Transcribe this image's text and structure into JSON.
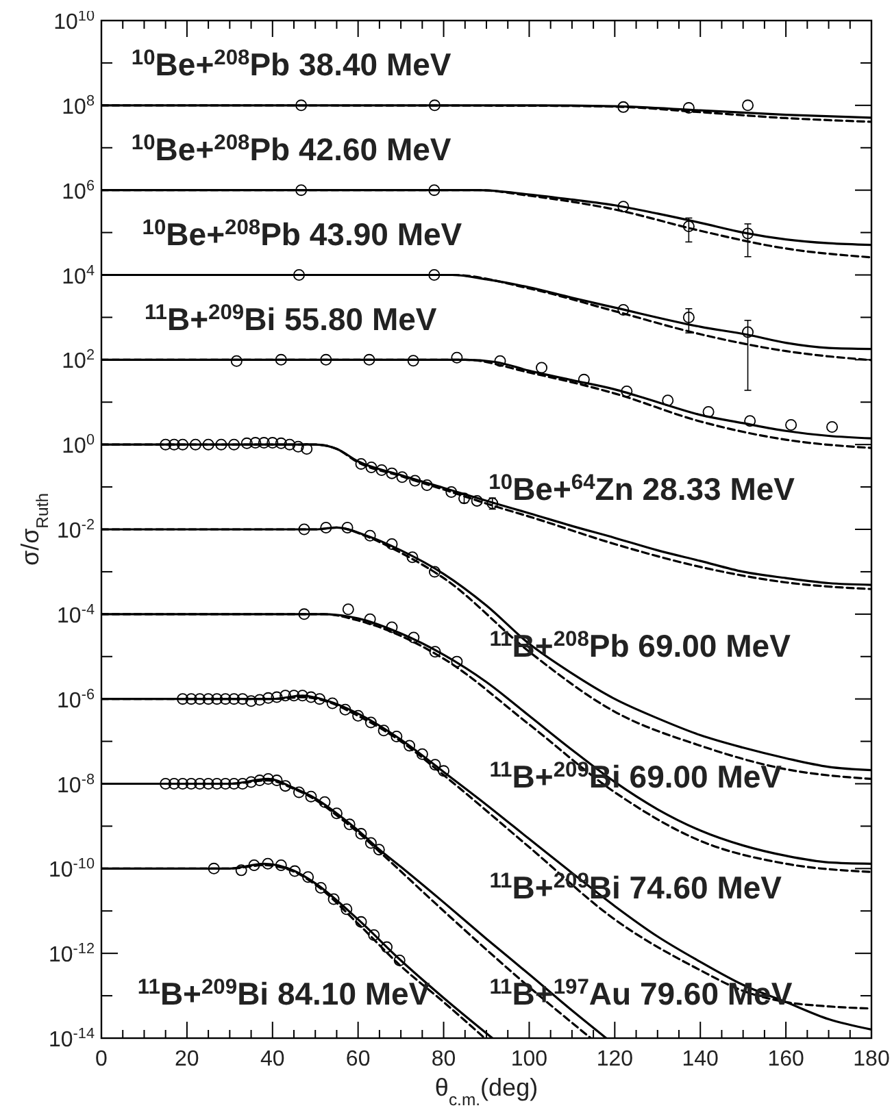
{
  "chart_data": {
    "type": "line",
    "log": true,
    "xlabel": "θ$_{c.m.}$(deg)",
    "ylabel": "σ/σ$_{Ruth}$",
    "xlim": [
      0,
      180
    ],
    "ylim": [
      1e-14,
      10000000000.0
    ],
    "xticks": [
      0,
      {
        "value": 5,
        "label": null
      },
      {
        "value": 10,
        "label": null
      },
      {
        "value": 15,
        "label": null
      },
      20,
      {
        "value": 25,
        "label": null
      },
      {
        "value": 30,
        "label": null
      },
      {
        "value": 35,
        "label": null
      },
      40,
      {
        "value": 45,
        "label": null
      },
      {
        "value": 50,
        "label": null
      },
      {
        "value": 55,
        "label": null
      },
      60,
      {
        "value": 65,
        "label": null
      },
      {
        "value": 70,
        "label": null
      },
      {
        "value": 75,
        "label": null
      },
      80,
      {
        "value": 85,
        "label": null
      },
      {
        "value": 90,
        "label": null
      },
      {
        "value": 95,
        "label": null
      },
      100,
      {
        "value": 105,
        "label": null
      },
      {
        "value": 110,
        "label": null
      },
      {
        "value": 115,
        "label": null
      },
      120,
      {
        "value": 125,
        "label": null
      },
      {
        "value": 130,
        "label": null
      },
      {
        "value": 135,
        "label": null
      },
      140,
      {
        "value": 145,
        "label": null
      },
      {
        "value": 150,
        "label": null
      },
      {
        "value": 155,
        "label": null
      },
      160,
      {
        "value": 165,
        "label": null
      },
      {
        "value": 170,
        "label": null
      },
      {
        "value": 175,
        "label": null
      },
      180
    ],
    "yticks": [
      {
        "value": 1e-14,
        "label": "10$^{-14}$"
      },
      {
        "value": 1e-13,
        "label": null
      },
      {
        "value": 1e-12,
        "label": "10$^{-12}$"
      },
      {
        "value": 1e-11,
        "label": null
      },
      {
        "value": 1e-10,
        "label": "10$^{-10}$"
      },
      {
        "value": 1e-09,
        "label": null
      },
      {
        "value": 1e-08,
        "label": "10$^{-8}$"
      },
      {
        "value": 1e-07,
        "label": null
      },
      {
        "value": 1e-06,
        "label": "10$^{-6}$"
      },
      {
        "value": 1e-05,
        "label": null
      },
      {
        "value": 0.0001,
        "label": "10$^{-4}$"
      },
      {
        "value": 0.001,
        "label": null
      },
      {
        "value": 0.01,
        "label": "10$^{-2}$"
      },
      {
        "value": 0.1,
        "label": null
      },
      {
        "value": 1,
        "label": "10$^{0}$"
      },
      {
        "value": 10,
        "label": null
      },
      {
        "value": 100,
        "label": "10$^{2}$"
      },
      {
        "value": 1000.0,
        "label": null
      },
      {
        "value": 10000.0,
        "label": "10$^{4}$"
      },
      {
        "value": 100000.0,
        "label": null
      },
      {
        "value": 1000000.0,
        "label": "10$^{6}$"
      },
      {
        "value": 10000000.0,
        "label": null
      },
      {
        "value": 100000000.0,
        "label": "10$^{8}$"
      },
      {
        "value": 1000000000.0,
        "label": null
      },
      {
        "value": 10000000000.0,
        "label": "10$^{10}$"
      }
    ],
    "annotations": [
      "$^{10}$Be+$^{208}$Pb 38.40 MeV",
      "$^{10}$Be+$^{208}$Pb 42.60 MeV",
      "$^{10}$Be+$^{208}$Pb 43.90 MeV",
      "$^{11}$B+$^{209}$Bi 55.80 MeV",
      "$^{10}$Be+$^{64}$Zn 28.33 MeV",
      "$^{11}$B+$^{208}$Pb 69.00 MeV",
      "$^{11}$B+$^{209}$Bi 69.00 MeV",
      "$^{11}$B+$^{209}$Bi 74.60 MeV",
      "$^{11}$B+$^{209}$Bi 84.10 MeV",
      "$^{11}$B+$^{197}$Au 79.60 MeV"
    ],
    "series": [
      {
        "type": "line",
        "line_style": "solid",
        "color": "#000000",
        "x": [
          0,
          100,
          120,
          140,
          160,
          180
        ],
        "values": [
          100000000.0,
          100000000.0,
          95000000.0,
          76000000.0,
          60000000.0,
          51000000.0
        ]
      },
      {
        "type": "line",
        "line_style": "dashed",
        "color": "#000000",
        "x": [
          0,
          100,
          120,
          140,
          160,
          180
        ],
        "values": [
          100000000.0,
          98000000.0,
          93000000.0,
          69000000.0,
          50000000.0,
          41000000.0
        ]
      },
      {
        "type": "scatter",
        "marker": "circle",
        "color": "#000000",
        "x": [
          46.7,
          77.9,
          122,
          137.3,
          151.1
        ],
        "values": [
          100000000.0,
          100000000.0,
          91000000.0,
          87000000.0,
          100000000.0
        ]
      },
      {
        "type": "line",
        "line_style": "solid",
        "color": "#000000",
        "x": [
          0,
          88,
          100,
          110,
          120,
          130,
          140,
          150,
          160,
          170,
          180
        ],
        "values": [
          1000000.0,
          1000000.0,
          790000.0,
          600000.0,
          440000.0,
          280000.0,
          170000.0,
          100000.0,
          69000.0,
          56000.0,
          51000.0
        ]
      },
      {
        "type": "line",
        "line_style": "dashed",
        "color": "#000000",
        "x": [
          0,
          88,
          100,
          120,
          140,
          160,
          180
        ],
        "values": [
          1000000.0,
          1000000.0,
          740000.0,
          350000.0,
          110000.0,
          42000.0,
          26000.0
        ]
      },
      {
        "type": "scatter",
        "marker": "circle",
        "color": "#000000",
        "x": [
          46.7,
          77.8,
          122,
          137.3,
          151.1
        ],
        "values": [
          1000000.0,
          1000000.0,
          410000.0,
          140000.0,
          95000.0
        ],
        "errors": [
          null,
          null,
          null,
          [
            60000.0,
            220000.0
          ],
          [
            27000.0,
            160000.0
          ]
        ]
      },
      {
        "type": "line",
        "line_style": "solid",
        "color": "#000000",
        "x": [
          0,
          82,
          90,
          100,
          110,
          120,
          140,
          151,
          160,
          170,
          180
        ],
        "values": [
          10000.0,
          10000.0,
          7900.0,
          5100.0,
          2900.0,
          1700.0,
          600.0,
          390.0,
          250.0,
          190.0,
          180.0
        ]
      },
      {
        "type": "line",
        "line_style": "dashed",
        "color": "#000000",
        "x": [
          0,
          82,
          100,
          120,
          140,
          160,
          180
        ],
        "values": [
          10000.0,
          10000.0,
          4800.0,
          1400.0,
          400.0,
          160.0,
          98
        ]
      },
      {
        "type": "scatter",
        "marker": "circle",
        "color": "#000000",
        "x": [
          46.2,
          77.8,
          122,
          137.3,
          151.1
        ],
        "values": [
          10000.0,
          10000.0,
          1500.0,
          1000.0,
          450.0
        ],
        "errors": [
          null,
          null,
          null,
          [
            430.0,
            1600.0
          ],
          [
            19,
            850.0
          ]
        ]
      },
      {
        "type": "line",
        "line_style": "solid",
        "color": "#000000",
        "x": [
          0,
          85,
          92,
          100,
          110,
          120,
          130,
          140,
          150,
          160,
          170,
          180
        ],
        "values": [
          100,
          100,
          89,
          55,
          33,
          20,
          10,
          5.0,
          3.2,
          2.1,
          1.6,
          1.4
        ]
      },
      {
        "type": "line",
        "line_style": "dashed",
        "color": "#000000",
        "x": [
          0,
          85,
          100,
          120,
          140,
          160,
          180
        ],
        "values": [
          100,
          100,
          50,
          16,
          3.5,
          1.3,
          0.83
        ]
      },
      {
        "type": "scatter",
        "marker": "circle",
        "color": "#000000",
        "x": [
          31.6,
          42,
          52.5,
          62.6,
          72.9,
          83.1,
          93.2,
          102.9,
          112.8,
          122.8,
          132.4,
          141.9,
          151.6,
          161.2,
          170.8
        ],
        "values": [
          93,
          100,
          100,
          100,
          95,
          112,
          93,
          65,
          34,
          18,
          11,
          5.9,
          3.6,
          2.9,
          2.6
        ]
      },
      {
        "type": "line",
        "line_style": "solid",
        "color": "#000000",
        "x": [
          0,
          50,
          55,
          60,
          70,
          80,
          92,
          100,
          110,
          120,
          130,
          140,
          150,
          160,
          170,
          180
        ],
        "values": [
          1,
          1,
          0.79,
          0.4,
          0.19,
          0.095,
          0.041,
          0.024,
          0.012,
          0.0063,
          0.0032,
          0.0018,
          0.001,
          0.00071,
          0.00054,
          0.00049
        ]
      },
      {
        "type": "line",
        "line_style": "dashed",
        "color": "#000000",
        "x": [
          0,
          50,
          55,
          60,
          70,
          80,
          92,
          100,
          120,
          140,
          160,
          180
        ],
        "values": [
          1,
          1,
          0.79,
          0.38,
          0.18,
          0.087,
          0.035,
          0.02,
          0.0045,
          0.0013,
          0.00056,
          0.00039
        ]
      },
      {
        "type": "scatter",
        "marker": "circle",
        "color": "#000000",
        "x": [
          15,
          17,
          19,
          22,
          25,
          28,
          31,
          34,
          36,
          38,
          40,
          42,
          44,
          46,
          48,
          60.7,
          63.1,
          65.5,
          67.9,
          70.3,
          73.3,
          76.1,
          81.8,
          84.8,
          87.8,
          91.4
        ],
        "values": [
          1,
          1,
          1,
          1,
          1,
          1,
          1,
          1.07,
          1.1,
          1.1,
          1.1,
          1.07,
          1,
          0.89,
          0.79,
          0.35,
          0.29,
          0.25,
          0.21,
          0.17,
          0.14,
          0.11,
          0.076,
          0.054,
          0.047,
          0.041
        ],
        "errors": [
          null,
          null,
          null,
          null,
          null,
          null,
          null,
          null,
          null,
          null,
          null,
          null,
          null,
          null,
          null,
          null,
          null,
          null,
          null,
          null,
          null,
          null,
          null,
          [
            0.042,
            0.066
          ],
          null,
          [
            0.03,
            0.055
          ]
        ]
      },
      {
        "type": "line",
        "line_style": "solid",
        "color": "#000000",
        "x": [
          0,
          50,
          55,
          62,
          70,
          80,
          90,
          100,
          110,
          120,
          130,
          140,
          150,
          160,
          170,
          180
        ],
        "values": [
          0.01,
          0.01,
          0.011,
          0.0071,
          0.0032,
          0.00089,
          0.00016,
          2e-05,
          4e-06,
          1e-06,
          3.5e-07,
          1.4e-07,
          7.1e-08,
          4e-08,
          2.5e-08,
          2.1e-08
        ]
      },
      {
        "type": "line",
        "line_style": "dashed",
        "color": "#000000",
        "x": [
          0,
          50,
          55,
          62,
          70,
          80,
          100,
          120,
          140,
          160,
          180
        ],
        "values": [
          0.01,
          0.01,
          0.011,
          0.0068,
          0.0028,
          0.00071,
          1.3e-05,
          5e-07,
          7.9e-08,
          2.2e-08,
          1.3e-08
        ]
      },
      {
        "type": "scatter",
        "marker": "circle",
        "color": "#000000",
        "x": [
          47.4,
          52.5,
          57.5,
          62.8,
          67.9,
          72.7,
          77.9
        ],
        "values": [
          0.01,
          0.011,
          0.011,
          0.0071,
          0.0045,
          0.0022,
          0.001
        ]
      },
      {
        "type": "line",
        "line_style": "solid",
        "color": "#000000",
        "x": [
          0,
          52,
          60,
          70,
          80,
          90,
          100,
          110,
          120,
          130,
          140,
          150,
          160,
          170,
          180
        ],
        "values": [
          0.0001,
          0.0001,
          7.9e-05,
          3.5e-05,
          1.1e-05,
          2.5e-06,
          4e-07,
          6.3e-08,
          1.1e-08,
          2.5e-09,
          7.9e-10,
          3.5e-10,
          2e-10,
          1.4e-10,
          1.3e-10
        ]
      },
      {
        "type": "line",
        "line_style": "dashed",
        "color": "#000000",
        "x": [
          0,
          52,
          60,
          80,
          100,
          120,
          140,
          160,
          180
        ],
        "values": [
          0.0001,
          0.0001,
          7.1e-05,
          8.9e-06,
          2.5e-07,
          6.3e-09,
          4.5e-10,
          1.3e-10,
          8.3e-11
        ]
      },
      {
        "type": "scatter",
        "marker": "circle",
        "color": "#000000",
        "x": [
          47.4,
          57.7,
          62.8,
          67.9,
          73,
          78,
          83.1
        ],
        "values": [
          0.0001,
          0.00013,
          7.6e-05,
          4.9e-05,
          2.8e-05,
          1.3e-05,
          7.6e-06
        ]
      },
      {
        "type": "line",
        "line_style": "solid",
        "color": "#000000",
        "x": [
          0,
          40,
          47,
          53,
          60,
          70,
          80,
          90,
          100,
          110,
          120,
          130,
          140,
          150,
          160,
          170,
          180
        ],
        "values": [
          1e-06,
          1e-06,
          1.2e-06,
          8.9e-07,
          4.5e-07,
          1.1e-07,
          1.9e-08,
          3.2e-09,
          5e-10,
          7.9e-11,
          1.3e-11,
          2.5e-12,
          6.3e-13,
          1.8e-13,
          7.1e-14,
          2.8e-14,
          1.6e-14
        ]
      },
      {
        "type": "line",
        "line_style": "dashed",
        "color": "#000000",
        "x": [
          0,
          40,
          47,
          53,
          60,
          70,
          80,
          100,
          120,
          140,
          150,
          160,
          170,
          180
        ],
        "values": [
          1e-06,
          1e-06,
          1.1e-06,
          8.5e-07,
          4e-07,
          1e-07,
          1.6e-08,
          3.2e-10,
          6.3e-12,
          4e-13,
          1.3e-13,
          7.1e-14,
          5.6e-14,
          5e-14
        ]
      },
      {
        "type": "scatter",
        "marker": "circle",
        "color": "#000000",
        "x": [
          19,
          21,
          23,
          25,
          27,
          29,
          31,
          33,
          35,
          37,
          39,
          41,
          43,
          45,
          47,
          49,
          51,
          54,
          57,
          60,
          63,
          66,
          69,
          72,
          75,
          78,
          80
        ],
        "values": [
          1e-06,
          1e-06,
          1e-06,
          1e-06,
          1e-06,
          1e-06,
          1e-06,
          1e-06,
          8.9e-07,
          9.5e-07,
          1.05e-06,
          1.1e-06,
          1.2e-06,
          1.2e-06,
          1.2e-06,
          1.1e-06,
          1e-06,
          7.9e-07,
          5.6e-07,
          4e-07,
          2.8e-07,
          1.8e-07,
          1.3e-07,
          7.9e-08,
          5e-08,
          2.8e-08,
          2e-08
        ]
      },
      {
        "type": "line",
        "line_style": "solid",
        "color": "#000000",
        "x": [
          0,
          30,
          39,
          45,
          50,
          55,
          60,
          65,
          70,
          80,
          90,
          100,
          110,
          118
        ],
        "values": [
          1e-08,
          1e-08,
          1.3e-08,
          7.9e-09,
          4.5e-09,
          2e-09,
          7.9e-10,
          2.8e-10,
          1.1e-10,
          1.6e-11,
          2.2e-12,
          3.2e-13,
          4.5e-14,
          1e-14
        ]
      },
      {
        "type": "line",
        "line_style": "dashed",
        "color": "#000000",
        "x": [
          0,
          30,
          39,
          45,
          50,
          55,
          60,
          65,
          80,
          100,
          114.4
        ],
        "values": [
          1e-08,
          1e-08,
          1.2e-08,
          7.6e-09,
          4.2e-09,
          1.8e-09,
          7.1e-10,
          2.5e-10,
          1e-11,
          1.6e-13,
          1e-14
        ]
      },
      {
        "type": "scatter",
        "marker": "circle",
        "color": "#000000",
        "x": [
          15,
          17,
          19,
          21,
          23,
          25,
          27,
          29,
          31,
          33,
          35,
          37,
          39,
          41,
          43,
          46.2,
          49,
          52.2,
          55,
          58,
          60.7,
          63,
          64.9
        ],
        "values": [
          1e-08,
          1e-08,
          1e-08,
          1e-08,
          1e-08,
          1e-08,
          1e-08,
          1e-08,
          1e-08,
          1e-08,
          1.1e-08,
          1.2e-08,
          1.3e-08,
          1.2e-08,
          8.9e-09,
          6.3e-09,
          5e-09,
          3.7e-09,
          2e-09,
          1.1e-09,
          6.6e-10,
          4e-10,
          2.8e-10
        ]
      },
      {
        "type": "line",
        "line_style": "solid",
        "color": "#000000",
        "x": [
          0,
          30,
          38,
          45,
          50,
          60,
          70,
          80,
          91.4
        ],
        "values": [
          1e-10,
          1e-10,
          1.3e-10,
          8.9e-11,
          4.5e-11,
          6.3e-12,
          6.8e-13,
          8.9e-14,
          1e-14
        ]
      },
      {
        "type": "line",
        "line_style": "dashed",
        "color": "#000000",
        "x": [
          0,
          30,
          38,
          45,
          50,
          60,
          70,
          80,
          89.6
        ],
        "values": [
          1e-10,
          1e-10,
          1.2e-10,
          8.5e-11,
          4.2e-11,
          5e-12,
          5e-13,
          7.1e-14,
          1e-14
        ]
      },
      {
        "type": "scatter",
        "marker": "circle",
        "color": "#000000",
        "x": [
          26.3,
          32.7,
          35.7,
          38.9,
          42,
          45.2,
          48.3,
          51.3,
          54.3,
          57.3,
          60.7,
          63.7,
          66.7,
          69.7
        ],
        "values": [
          1e-10,
          9.1e-11,
          1.2e-10,
          1.3e-10,
          1.2e-10,
          8.7e-11,
          6.3e-11,
          3.5e-11,
          1.9e-11,
          1.1e-11,
          5.5e-12,
          2.7e-12,
          1.4e-12,
          6.8e-13
        ]
      }
    ]
  }
}
